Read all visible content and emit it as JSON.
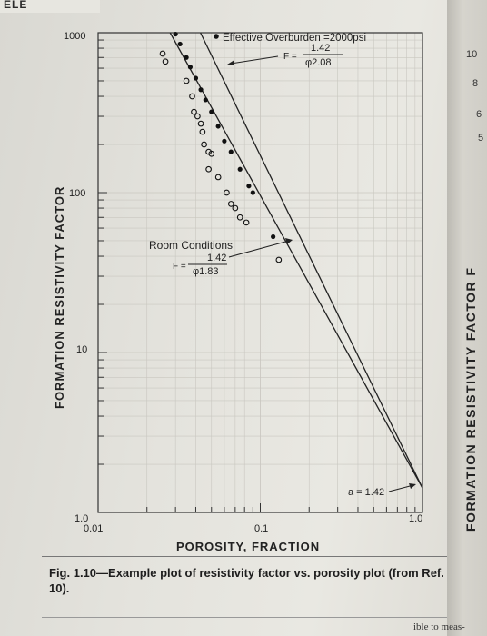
{
  "page": {
    "header_fragment": "ELE",
    "right_ticks": [
      "10",
      "8",
      "6",
      "5"
    ],
    "right_ylabel": "FORMATION RESISTIVITY FACTOR F",
    "caption": "Fig. 1.10—Example plot of resistivity factor vs. porosity plot (from Ref. 10).",
    "bottom_text": "ible to meas-"
  },
  "chart_data": {
    "type": "scatter",
    "title": "",
    "xlabel": "POROSITY, FRACTION",
    "ylabel": "FORMATION RESISTIVITY FACTOR",
    "x_scale": "log",
    "y_scale": "log",
    "xlim": [
      0.01,
      1.0
    ],
    "ylim": [
      1.0,
      1000
    ],
    "x_tick_labels": [
      "0.01",
      "0.1",
      "1.0"
    ],
    "y_tick_labels": [
      "1.0",
      "10",
      "100",
      "1000"
    ],
    "grid": true,
    "lines": [
      {
        "label_lines": [
          "Effective Overburden =2000psi",
          "F =",
          "1.42",
          "φ2.08"
        ],
        "a": 1.42,
        "m": 2.08
      },
      {
        "label_lines": [
          "Room Conditions",
          "F =",
          "1.42",
          "φ1.83"
        ],
        "a": 1.42,
        "m": 1.83
      }
    ],
    "intercept_label": "a = 1.42",
    "series": [
      {
        "name": "Effective Overburden",
        "marker": "filled-circle",
        "points": [
          [
            0.03,
            980
          ],
          [
            0.032,
            850
          ],
          [
            0.035,
            700
          ],
          [
            0.037,
            610
          ],
          [
            0.04,
            520
          ],
          [
            0.043,
            440
          ],
          [
            0.046,
            380
          ],
          [
            0.05,
            320
          ],
          [
            0.055,
            260
          ],
          [
            0.06,
            210
          ],
          [
            0.066,
            180
          ],
          [
            0.075,
            140
          ],
          [
            0.085,
            110
          ],
          [
            0.09,
            100
          ],
          [
            0.12,
            53
          ]
        ]
      },
      {
        "name": "Room Conditions",
        "marker": "open-circle",
        "points": [
          [
            0.025,
            740
          ],
          [
            0.026,
            660
          ],
          [
            0.035,
            500
          ],
          [
            0.038,
            400
          ],
          [
            0.039,
            320
          ],
          [
            0.041,
            300
          ],
          [
            0.043,
            270
          ],
          [
            0.044,
            240
          ],
          [
            0.045,
            200
          ],
          [
            0.048,
            180
          ],
          [
            0.05,
            175
          ],
          [
            0.048,
            140
          ],
          [
            0.055,
            125
          ],
          [
            0.062,
            100
          ],
          [
            0.066,
            85
          ],
          [
            0.07,
            80
          ],
          [
            0.075,
            70
          ],
          [
            0.082,
            65
          ],
          [
            0.13,
            38
          ]
        ]
      }
    ]
  }
}
